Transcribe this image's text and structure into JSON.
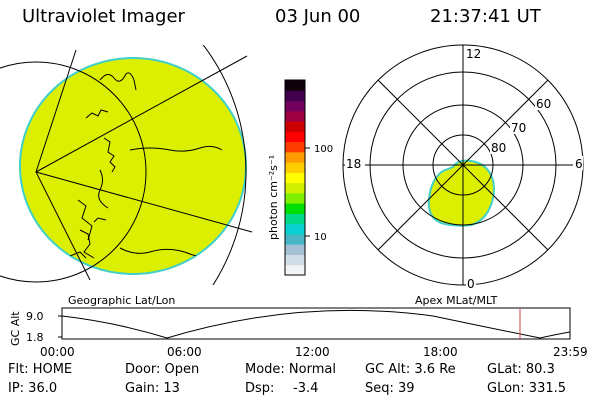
{
  "header": {
    "title": "Ultraviolet Imager",
    "date": "03 Jun 00",
    "time": "21:37:41 UT"
  },
  "colorbar": {
    "label": "photon cm⁻²s⁻¹",
    "ticks": [
      "100",
      "10"
    ],
    "colors": [
      "#f0f4f6",
      "#d0dde6",
      "#a3bfd2",
      "#49b6c6",
      "#08d0d0",
      "#00d88a",
      "#00e000",
      "#80f000",
      "#d0f000",
      "#ffff00",
      "#ffcc00",
      "#ff9a00",
      "#ff3c00",
      "#ff0000",
      "#cc0000",
      "#9c0040",
      "#70005c",
      "#40004c",
      "#10000c"
    ]
  },
  "geo_panel": {
    "label": "Geographic Lat/Lon"
  },
  "polar_panel": {
    "label": "Apex MLat/MLT",
    "mlt_labels": [
      "12",
      "18",
      "6",
      "0"
    ],
    "lat_labels": [
      "60",
      "70",
      "80"
    ]
  },
  "alt_plot": {
    "ylabel": "GC Alt",
    "y_ticks": [
      "9.0",
      "1.8"
    ],
    "x_ticks": [
      "00:00",
      "06:00",
      "12:00",
      "18:00",
      "23:59"
    ]
  },
  "info": {
    "filter": "Flt: HOME",
    "ip": "IP: 36.0",
    "door": "Door: Open",
    "gain": "Gain: 13",
    "mode": "Mode: Normal",
    "dsp_label": "Dsp:",
    "dsp_value": "-3.4",
    "gc_alt": "GC Alt: 3.6 Re",
    "seq": "Seq: 39",
    "glat": "GLat: 80.3",
    "glon": "GLon: 331.5"
  }
}
